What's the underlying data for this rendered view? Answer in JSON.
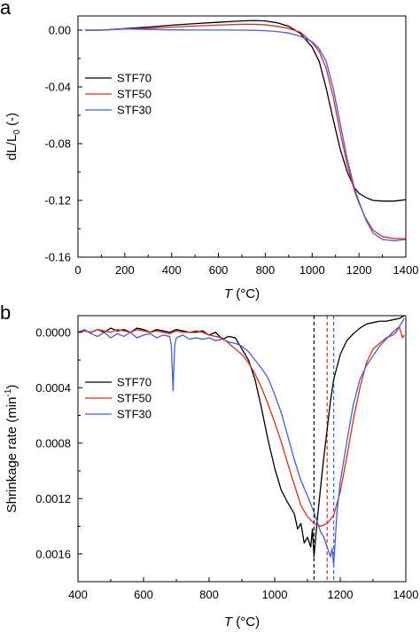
{
  "chart_data": [
    {
      "panel": "a",
      "type": "line",
      "title": "",
      "xlabel_var": "T",
      "xlabel_unit": " (°C)",
      "ylabel_parts": [
        "dL/L",
        "0",
        " (-)"
      ],
      "xlim": [
        0,
        1400
      ],
      "ylim": [
        -0.16,
        0.01
      ],
      "x_ticks": [
        0,
        200,
        400,
        600,
        800,
        1000,
        1200,
        1400
      ],
      "x_tick_labels": [
        "0",
        "200",
        "400",
        "600",
        "800",
        "1000",
        "1200",
        "1400"
      ],
      "y_ticks": [
        0.0,
        -0.04,
        -0.08,
        -0.12,
        -0.16
      ],
      "y_tick_labels": [
        "0.00",
        "-0.04",
        "-0.08",
        "-0.12",
        "-0.16"
      ],
      "grid": false,
      "legend_position": "left",
      "series": [
        {
          "name": "STF70",
          "color": "#000000",
          "x": [
            30,
            100,
            200,
            300,
            400,
            500,
            600,
            700,
            750,
            800,
            850,
            900,
            950,
            1000,
            1030,
            1060,
            1090,
            1120,
            1150,
            1180,
            1200,
            1230,
            1260,
            1300,
            1350,
            1400
          ],
          "y": [
            0.0,
            0.0,
            0.0011,
            0.0022,
            0.0035,
            0.0046,
            0.0056,
            0.0065,
            0.0068,
            0.0065,
            0.0052,
            0.0027,
            -0.0024,
            -0.012,
            -0.022,
            -0.041,
            -0.063,
            -0.084,
            -0.1,
            -0.111,
            -0.115,
            -0.118,
            -0.12,
            -0.1205,
            -0.1205,
            -0.1195
          ]
        },
        {
          "name": "STF50",
          "color": "#e8281e",
          "x": [
            30,
            100,
            200,
            300,
            400,
            500,
            600,
            700,
            750,
            800,
            850,
            900,
            950,
            1000,
            1030,
            1060,
            1090,
            1120,
            1150,
            1180,
            1200,
            1230,
            1260,
            1300,
            1350,
            1400
          ],
          "y": [
            0.0,
            0.0,
            0.0008,
            0.0013,
            0.0022,
            0.0029,
            0.0036,
            0.0041,
            0.0041,
            0.0038,
            0.0027,
            0.0012,
            -0.0015,
            -0.0088,
            -0.015,
            -0.027,
            -0.047,
            -0.072,
            -0.095,
            -0.113,
            -0.122,
            -0.133,
            -0.141,
            -0.1455,
            -0.147,
            -0.147
          ]
        },
        {
          "name": "STF30",
          "color": "#3f5fe0",
          "x": [
            30,
            100,
            200,
            300,
            400,
            500,
            600,
            700,
            750,
            800,
            850,
            900,
            950,
            1000,
            1030,
            1060,
            1090,
            1120,
            1150,
            1180,
            1200,
            1230,
            1260,
            1300,
            1350,
            1400
          ],
          "y": [
            0.0,
            0.0,
            0.0009,
            0.0005,
            0.0002,
            0.0001,
            0.0001,
            0.0,
            -0.0001,
            -0.0004,
            -0.001,
            -0.002,
            -0.0043,
            -0.0082,
            -0.013,
            -0.022,
            -0.041,
            -0.066,
            -0.091,
            -0.111,
            -0.121,
            -0.134,
            -0.143,
            -0.1475,
            -0.1485,
            -0.1475
          ]
        }
      ]
    },
    {
      "panel": "b",
      "type": "line",
      "title": "",
      "xlabel_var": "T",
      "xlabel_unit": " (°C)",
      "ylabel_parts": [
        "Shrinkage rate (min",
        "-1",
        ")"
      ],
      "xlim": [
        400,
        1400
      ],
      "ylim": [
        0.0018,
        -0.00012
      ],
      "x_ticks": [
        400,
        600,
        800,
        1000,
        1200,
        1400
      ],
      "x_tick_labels": [
        "400",
        "600",
        "800",
        "1000",
        "1200",
        "1400"
      ],
      "y_ticks": [
        0.0,
        0.0004,
        0.0008,
        0.0012,
        0.0016
      ],
      "y_tick_labels": [
        "0.0000",
        "0.0004",
        "0.0008",
        "0.0012",
        "0.0016"
      ],
      "grid": false,
      "legend_position": "left",
      "vlines": [
        {
          "x": 1120,
          "color": "#000000",
          "style": "dashed"
        },
        {
          "x": 1160,
          "color": "#e8281e",
          "style": "dashed"
        },
        {
          "x": 1180,
          "color": "#3f5fe0",
          "style": "dashed"
        }
      ],
      "series": [
        {
          "name": "STF70",
          "color": "#000000",
          "x": [
            400,
            420,
            440,
            460,
            480,
            500,
            520,
            540,
            560,
            580,
            600,
            620,
            640,
            660,
            680,
            700,
            720,
            740,
            760,
            780,
            800,
            820,
            840,
            860,
            880,
            900,
            920,
            940,
            960,
            980,
            1000,
            1020,
            1040,
            1060,
            1070,
            1080,
            1090,
            1100,
            1110,
            1115,
            1120,
            1130,
            1140,
            1150,
            1160,
            1170,
            1180,
            1200,
            1220,
            1240,
            1260,
            1280,
            1300,
            1320,
            1340,
            1360,
            1380,
            1395
          ],
          "y": [
            0.0,
            -1e-05,
            0.0,
            -2e-05,
            0.0,
            -3e-05,
            -1e-05,
            -2e-05,
            0.0,
            -3e-05,
            -2e-05,
            0.0,
            -2e-05,
            -1e-05,
            0.0,
            -2e-05,
            -1e-05,
            0.0,
            0.0,
            -1e-05,
            2e-05,
            0.0,
            5e-05,
            3e-05,
            4e-05,
            0.00012,
            0.0002,
            0.00034,
            0.00055,
            0.00078,
            0.00098,
            0.00114,
            0.00123,
            0.00131,
            0.00142,
            0.00138,
            0.00152,
            0.00148,
            0.00155,
            0.00142,
            0.00162,
            0.00135,
            0.00112,
            0.0009,
            0.0007,
            0.0005,
            0.00034,
            0.00016,
            6e-05,
            1e-05,
            -3e-05,
            -6e-05,
            -7e-05,
            -8e-05,
            -8e-05,
            -9e-05,
            -0.0001,
            -0.00012
          ]
        },
        {
          "name": "STF50",
          "color": "#e8281e",
          "x": [
            400,
            420,
            440,
            460,
            480,
            500,
            520,
            540,
            560,
            580,
            600,
            620,
            640,
            660,
            680,
            700,
            720,
            740,
            760,
            780,
            800,
            820,
            840,
            860,
            880,
            900,
            920,
            940,
            960,
            980,
            1000,
            1020,
            1040,
            1060,
            1080,
            1100,
            1120,
            1140,
            1160,
            1180,
            1200,
            1220,
            1240,
            1260,
            1280,
            1300,
            1320,
            1340,
            1360,
            1370,
            1380,
            1390,
            1395
          ],
          "y": [
            0.0,
            -1e-05,
            0.0,
            -2e-05,
            -1e-05,
            0.0,
            -2e-05,
            -1e-05,
            0.0,
            -2e-05,
            -1e-05,
            0.0,
            -1e-05,
            0.0,
            1e-05,
            -1e-05,
            0.0,
            0.0,
            -1e-05,
            0.0,
            2e-05,
            3e-05,
            4e-05,
            8e-05,
            0.00012,
            0.00016,
            0.00022,
            0.0003,
            0.0004,
            0.00052,
            0.00065,
            0.00079,
            0.00095,
            0.0011,
            0.00125,
            0.00133,
            0.00138,
            0.0014,
            0.00138,
            0.00132,
            0.00115,
            0.0009,
            0.00063,
            0.0004,
            0.00022,
            0.00012,
            8e-05,
            4e-05,
            2e-05,
            0.0,
            -4e-05,
            4e-05,
            2e-05
          ]
        },
        {
          "name": "STF30",
          "color": "#3f5fe0",
          "x": [
            400,
            420,
            440,
            460,
            480,
            500,
            520,
            540,
            560,
            580,
            600,
            620,
            640,
            660,
            680,
            685,
            690,
            695,
            700,
            720,
            740,
            760,
            780,
            800,
            820,
            840,
            860,
            880,
            900,
            920,
            940,
            960,
            980,
            1000,
            1020,
            1040,
            1060,
            1080,
            1100,
            1120,
            1140,
            1150,
            1160,
            1170,
            1175,
            1180,
            1190,
            1200,
            1220,
            1240,
            1260,
            1280,
            1300,
            1320,
            1340,
            1360,
            1380,
            1395
          ],
          "y": [
            0.0,
            -2e-05,
            1e-05,
            3e-05,
            0.0,
            4e-05,
            1e-05,
            3e-05,
            0.0,
            4e-05,
            2e-05,
            1e-05,
            4e-05,
            2e-05,
            3e-05,
            0.0001,
            0.00042,
            0.0001,
            4e-05,
            2e-05,
            5e-05,
            4e-05,
            5e-05,
            4e-05,
            6e-05,
            5e-05,
            7e-05,
            8e-05,
            0.0001,
            0.00014,
            0.0002,
            0.00026,
            0.00033,
            0.00045,
            0.00058,
            0.00075,
            0.00092,
            0.00107,
            0.00118,
            0.0013,
            0.00144,
            0.00148,
            0.00155,
            0.00162,
            0.00156,
            0.00168,
            0.0013,
            0.00108,
            0.00079,
            0.00052,
            0.00034,
            0.00024,
            0.00017,
            0.0001,
            5e-05,
            0.0,
            -4e-05,
            -0.0001
          ]
        }
      ]
    }
  ]
}
